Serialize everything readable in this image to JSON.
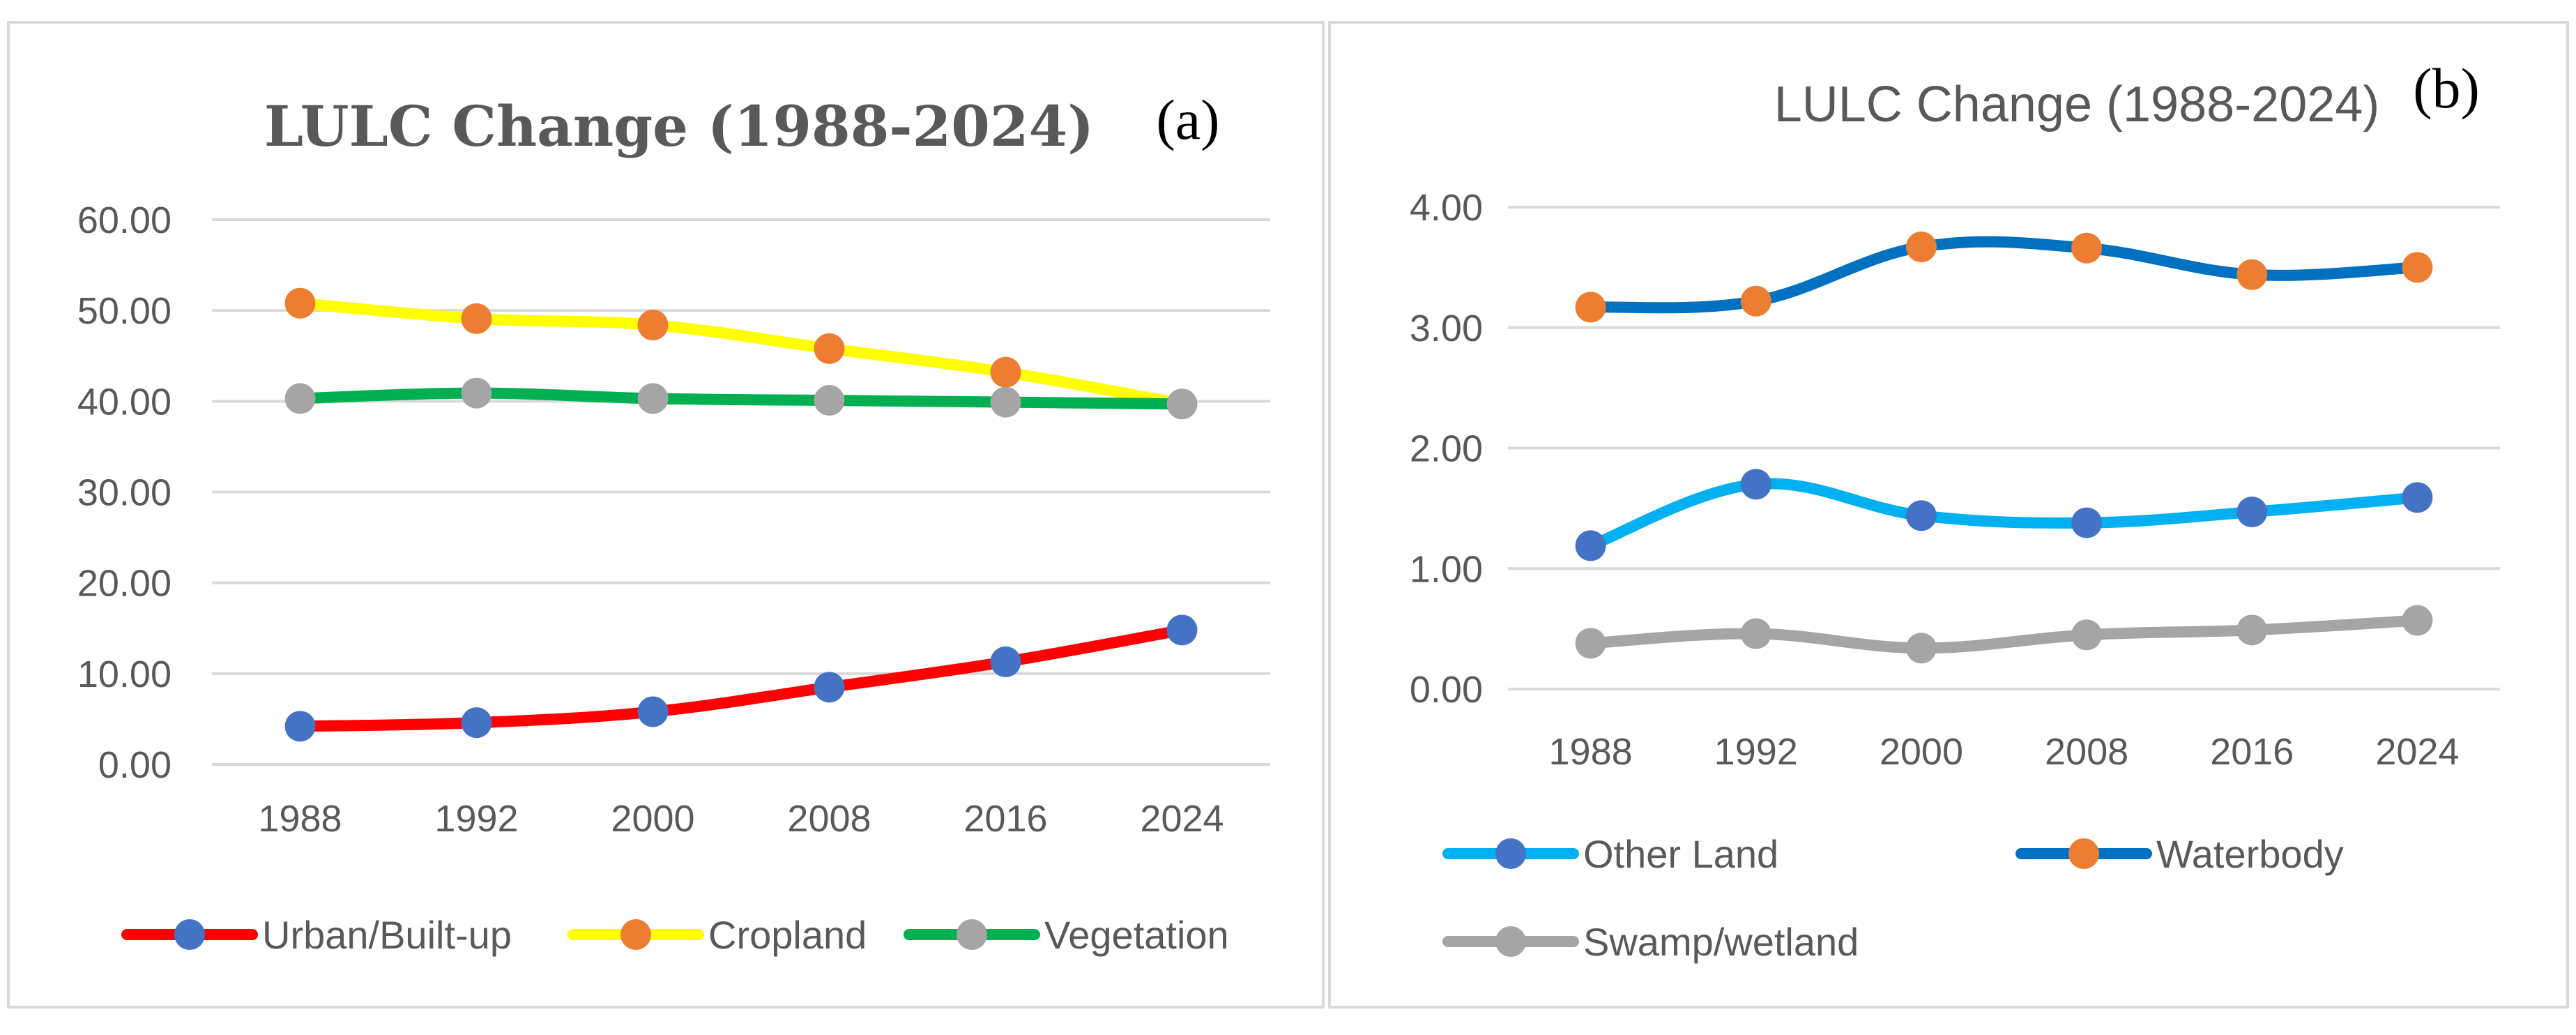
{
  "chart_data": [
    {
      "panel_label": "(a)",
      "type": "line",
      "title": "LULC Change (1988-2024)",
      "xlabel": "",
      "ylabel": "",
      "categories": [
        "1988",
        "1992",
        "2000",
        "2008",
        "2016",
        "2024"
      ],
      "ylim": [
        0,
        60
      ],
      "yticks": [
        "0.00",
        "10.00",
        "20.00",
        "30.00",
        "40.00",
        "50.00",
        "60.00"
      ],
      "grid": true,
      "legend_position": "bottom",
      "series": [
        {
          "name": "Urban/Built-up",
          "line_color": "#ff0000",
          "marker_color": "#4472c4",
          "values": [
            4.2,
            4.6,
            5.8,
            8.5,
            11.3,
            14.8
          ]
        },
        {
          "name": "Cropland",
          "line_color": "#ffff00",
          "marker_color": "#ed7d31",
          "values": [
            50.8,
            49.1,
            48.4,
            45.8,
            43.2,
            null
          ]
        },
        {
          "name": "Vegetation",
          "line_color": "#00b050",
          "marker_color": "#a5a5a5",
          "values": [
            40.3,
            40.9,
            40.3,
            40.1,
            39.9,
            39.7
          ]
        }
      ]
    },
    {
      "panel_label": "(b)",
      "type": "line",
      "title": "LULC Change (1988-2024)",
      "xlabel": "",
      "ylabel": "",
      "categories": [
        "1988",
        "1992",
        "2000",
        "2008",
        "2016",
        "2024"
      ],
      "ylim": [
        0,
        4
      ],
      "yticks": [
        "0.00",
        "1.00",
        "2.00",
        "3.00",
        "4.00"
      ],
      "grid": true,
      "legend_position": "bottom",
      "series": [
        {
          "name": "Other Land",
          "line_color": "#00b0f0",
          "marker_color": "#4472c4",
          "values": [
            1.19,
            1.7,
            1.44,
            1.38,
            1.47,
            1.59
          ]
        },
        {
          "name": "Waterbody",
          "line_color": "#0070c0",
          "marker_color": "#ed7d31",
          "values": [
            3.17,
            3.22,
            3.67,
            3.66,
            3.44,
            3.5
          ]
        },
        {
          "name": "Swamp/wetland",
          "line_color": "#a5a5a5",
          "marker_color": "#a5a5a5",
          "values": [
            0.38,
            0.46,
            0.34,
            0.45,
            0.49,
            0.57
          ]
        }
      ]
    }
  ]
}
